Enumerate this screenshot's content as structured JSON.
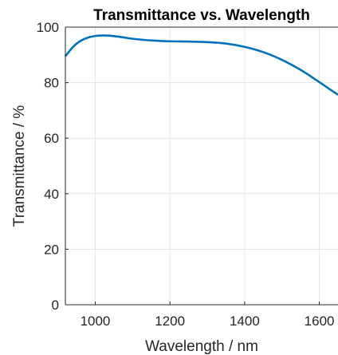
{
  "chart_data": {
    "type": "line",
    "title": "Transmittance vs. Wavelength",
    "xlabel": "Wavelength / nm",
    "ylabel": "Transmittance / %",
    "xlim": [
      920,
      1650
    ],
    "ylim": [
      0,
      100
    ],
    "xticks": [
      1000,
      1200,
      1400,
      1600
    ],
    "yticks": [
      0,
      20,
      40,
      60,
      80,
      100
    ],
    "grid": true,
    "series": [
      {
        "color": "#0072BD",
        "x": [
          920,
          940,
          960,
          980,
          1000,
          1020,
          1040,
          1060,
          1080,
          1100,
          1150,
          1200,
          1250,
          1300,
          1350,
          1400,
          1450,
          1500,
          1550,
          1600,
          1650
        ],
        "y": [
          89.5,
          92.8,
          95.0,
          96.2,
          96.8,
          97.0,
          96.9,
          96.6,
          96.2,
          95.8,
          95.2,
          94.9,
          94.8,
          94.6,
          94.1,
          92.9,
          91.0,
          88.2,
          84.6,
          80.2,
          75.6
        ]
      }
    ]
  }
}
